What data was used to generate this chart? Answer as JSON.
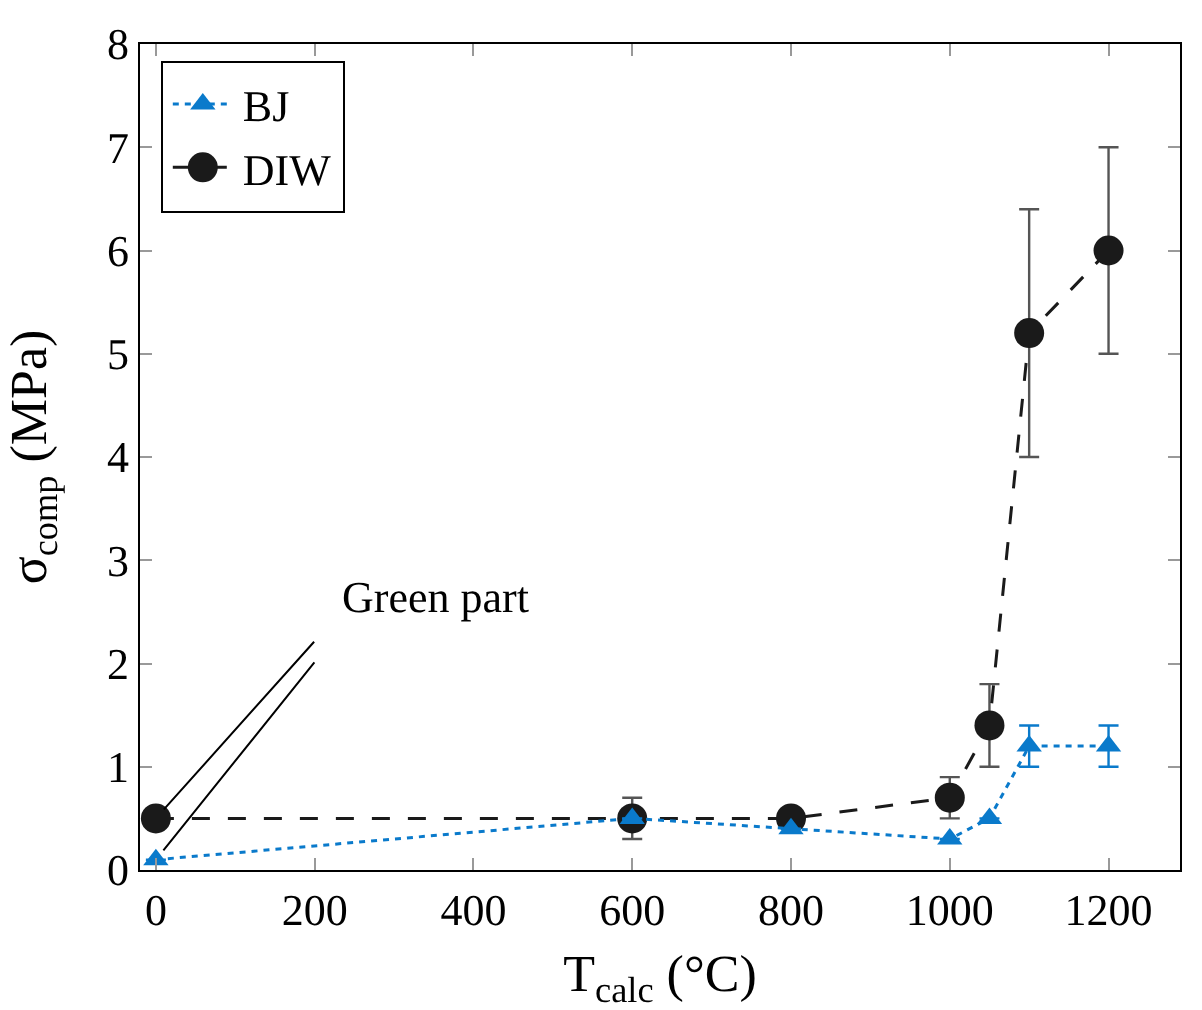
{
  "chart_data": {
    "type": "line",
    "xlabel": "T$_{calc}$ (°C)",
    "ylabel": "σ$_{comp}$ (MPa)",
    "x": [
      0,
      600,
      800,
      1000,
      1050,
      1100,
      1200
    ],
    "series": [
      {
        "name": "BJ",
        "color": "#0a7acb",
        "values": [
          0.1,
          0.5,
          0.4,
          0.3,
          0.5,
          1.2,
          1.2
        ],
        "errors": [
          null,
          null,
          null,
          null,
          null,
          0.2,
          0.2
        ],
        "marker": "triangle",
        "line_style": "dotted"
      },
      {
        "name": "DIW",
        "color": "#1a1a1a",
        "values": [
          0.5,
          0.5,
          0.5,
          0.7,
          1.4,
          5.2,
          6.0
        ],
        "errors": [
          null,
          0.2,
          null,
          0.2,
          0.4,
          [
            4.0,
            6.4
          ],
          1.0
        ],
        "marker": "circle",
        "line_style": "dashed"
      }
    ],
    "xlim": [
      -20,
      1290
    ],
    "xticks": [
      0,
      200,
      400,
      600,
      800,
      1000,
      1200
    ],
    "ylim": [
      0,
      8
    ],
    "yticks": [
      0,
      1,
      2,
      3,
      4,
      5,
      6,
      7,
      8
    ],
    "grid": false,
    "legend": "top left",
    "annotations": [
      {
        "text": "Green part",
        "x": 0,
        "y": 0.5
      }
    ]
  }
}
